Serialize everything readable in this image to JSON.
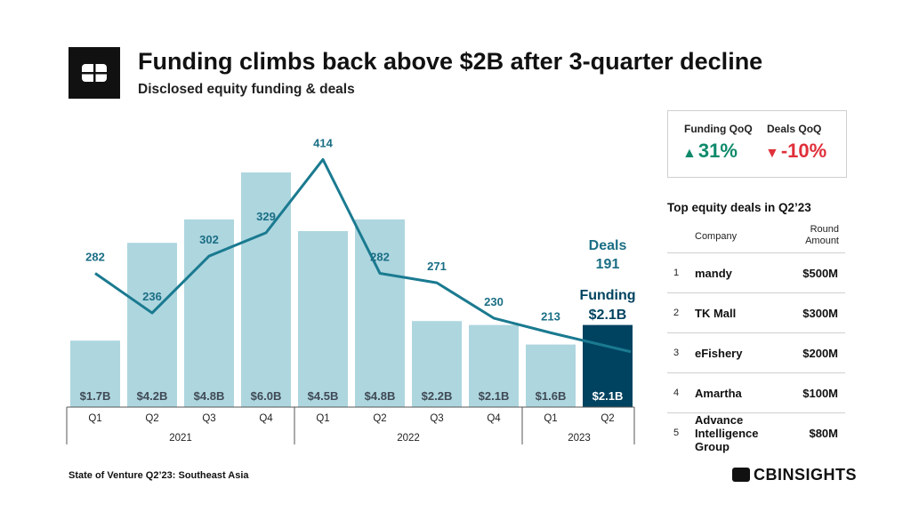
{
  "header": {
    "title": "Funding climbs back above $2B after 3-quarter decline",
    "subtitle": "Disclosed equity funding & deals"
  },
  "chart_data": {
    "type": "bar",
    "categories": [
      "Q1",
      "Q2",
      "Q3",
      "Q4",
      "Q1",
      "Q2",
      "Q3",
      "Q4",
      "Q1",
      "Q2"
    ],
    "years": [
      {
        "label": "2021",
        "count": 4
      },
      {
        "label": "2022",
        "count": 4
      },
      {
        "label": "2023",
        "count": 2
      }
    ],
    "series": [
      {
        "name": "Funding",
        "kind": "bar",
        "values": [
          1.7,
          4.2,
          4.8,
          6.0,
          4.5,
          4.8,
          2.2,
          2.1,
          1.6,
          2.1
        ],
        "labels": [
          "$1.7B",
          "$4.2B",
          "$4.8B",
          "$6.0B",
          "$4.5B",
          "$4.8B",
          "$2.2B",
          "$2.1B",
          "$1.6B",
          "$2.1B"
        ]
      },
      {
        "name": "Deals",
        "kind": "line",
        "values": [
          282,
          236,
          302,
          329,
          414,
          282,
          271,
          230,
          213,
          191
        ]
      }
    ],
    "annotations": {
      "deals_label": "Deals",
      "deals_value": "191",
      "funding_label": "Funding",
      "funding_value": "$2.1B"
    },
    "colors": {
      "bar": "#aed6df",
      "bar_highlight": "#004360",
      "line": "#1a7a90",
      "line_label": "#1a6e85",
      "bar_label": "#3f4a55"
    }
  },
  "kpis": [
    {
      "label": "Funding QoQ",
      "value": "31%",
      "direction": "up",
      "color": "#0e8a6b"
    },
    {
      "label": "Deals QoQ",
      "value": "-10%",
      "direction": "down",
      "color": "#e0303a"
    }
  ],
  "top_deals": {
    "title": "Top equity deals in Q2’23",
    "col_company": "Company",
    "col_amount_line1": "Round",
    "col_amount_line2": "Amount",
    "rows": [
      {
        "rank": "1",
        "company": "mandy",
        "amount": "$500M"
      },
      {
        "rank": "2",
        "company": "TK Mall",
        "amount": "$300M"
      },
      {
        "rank": "3",
        "company": "eFishery",
        "amount": "$200M"
      },
      {
        "rank": "4",
        "company": "Amartha",
        "amount": "$100M"
      },
      {
        "rank": "5",
        "company": "Advance Intelligence Group",
        "amount": "$80M"
      }
    ]
  },
  "footer": {
    "source": "State of Venture Q2’23: Southeast Asia",
    "brand": "CBINSIGHTS"
  }
}
